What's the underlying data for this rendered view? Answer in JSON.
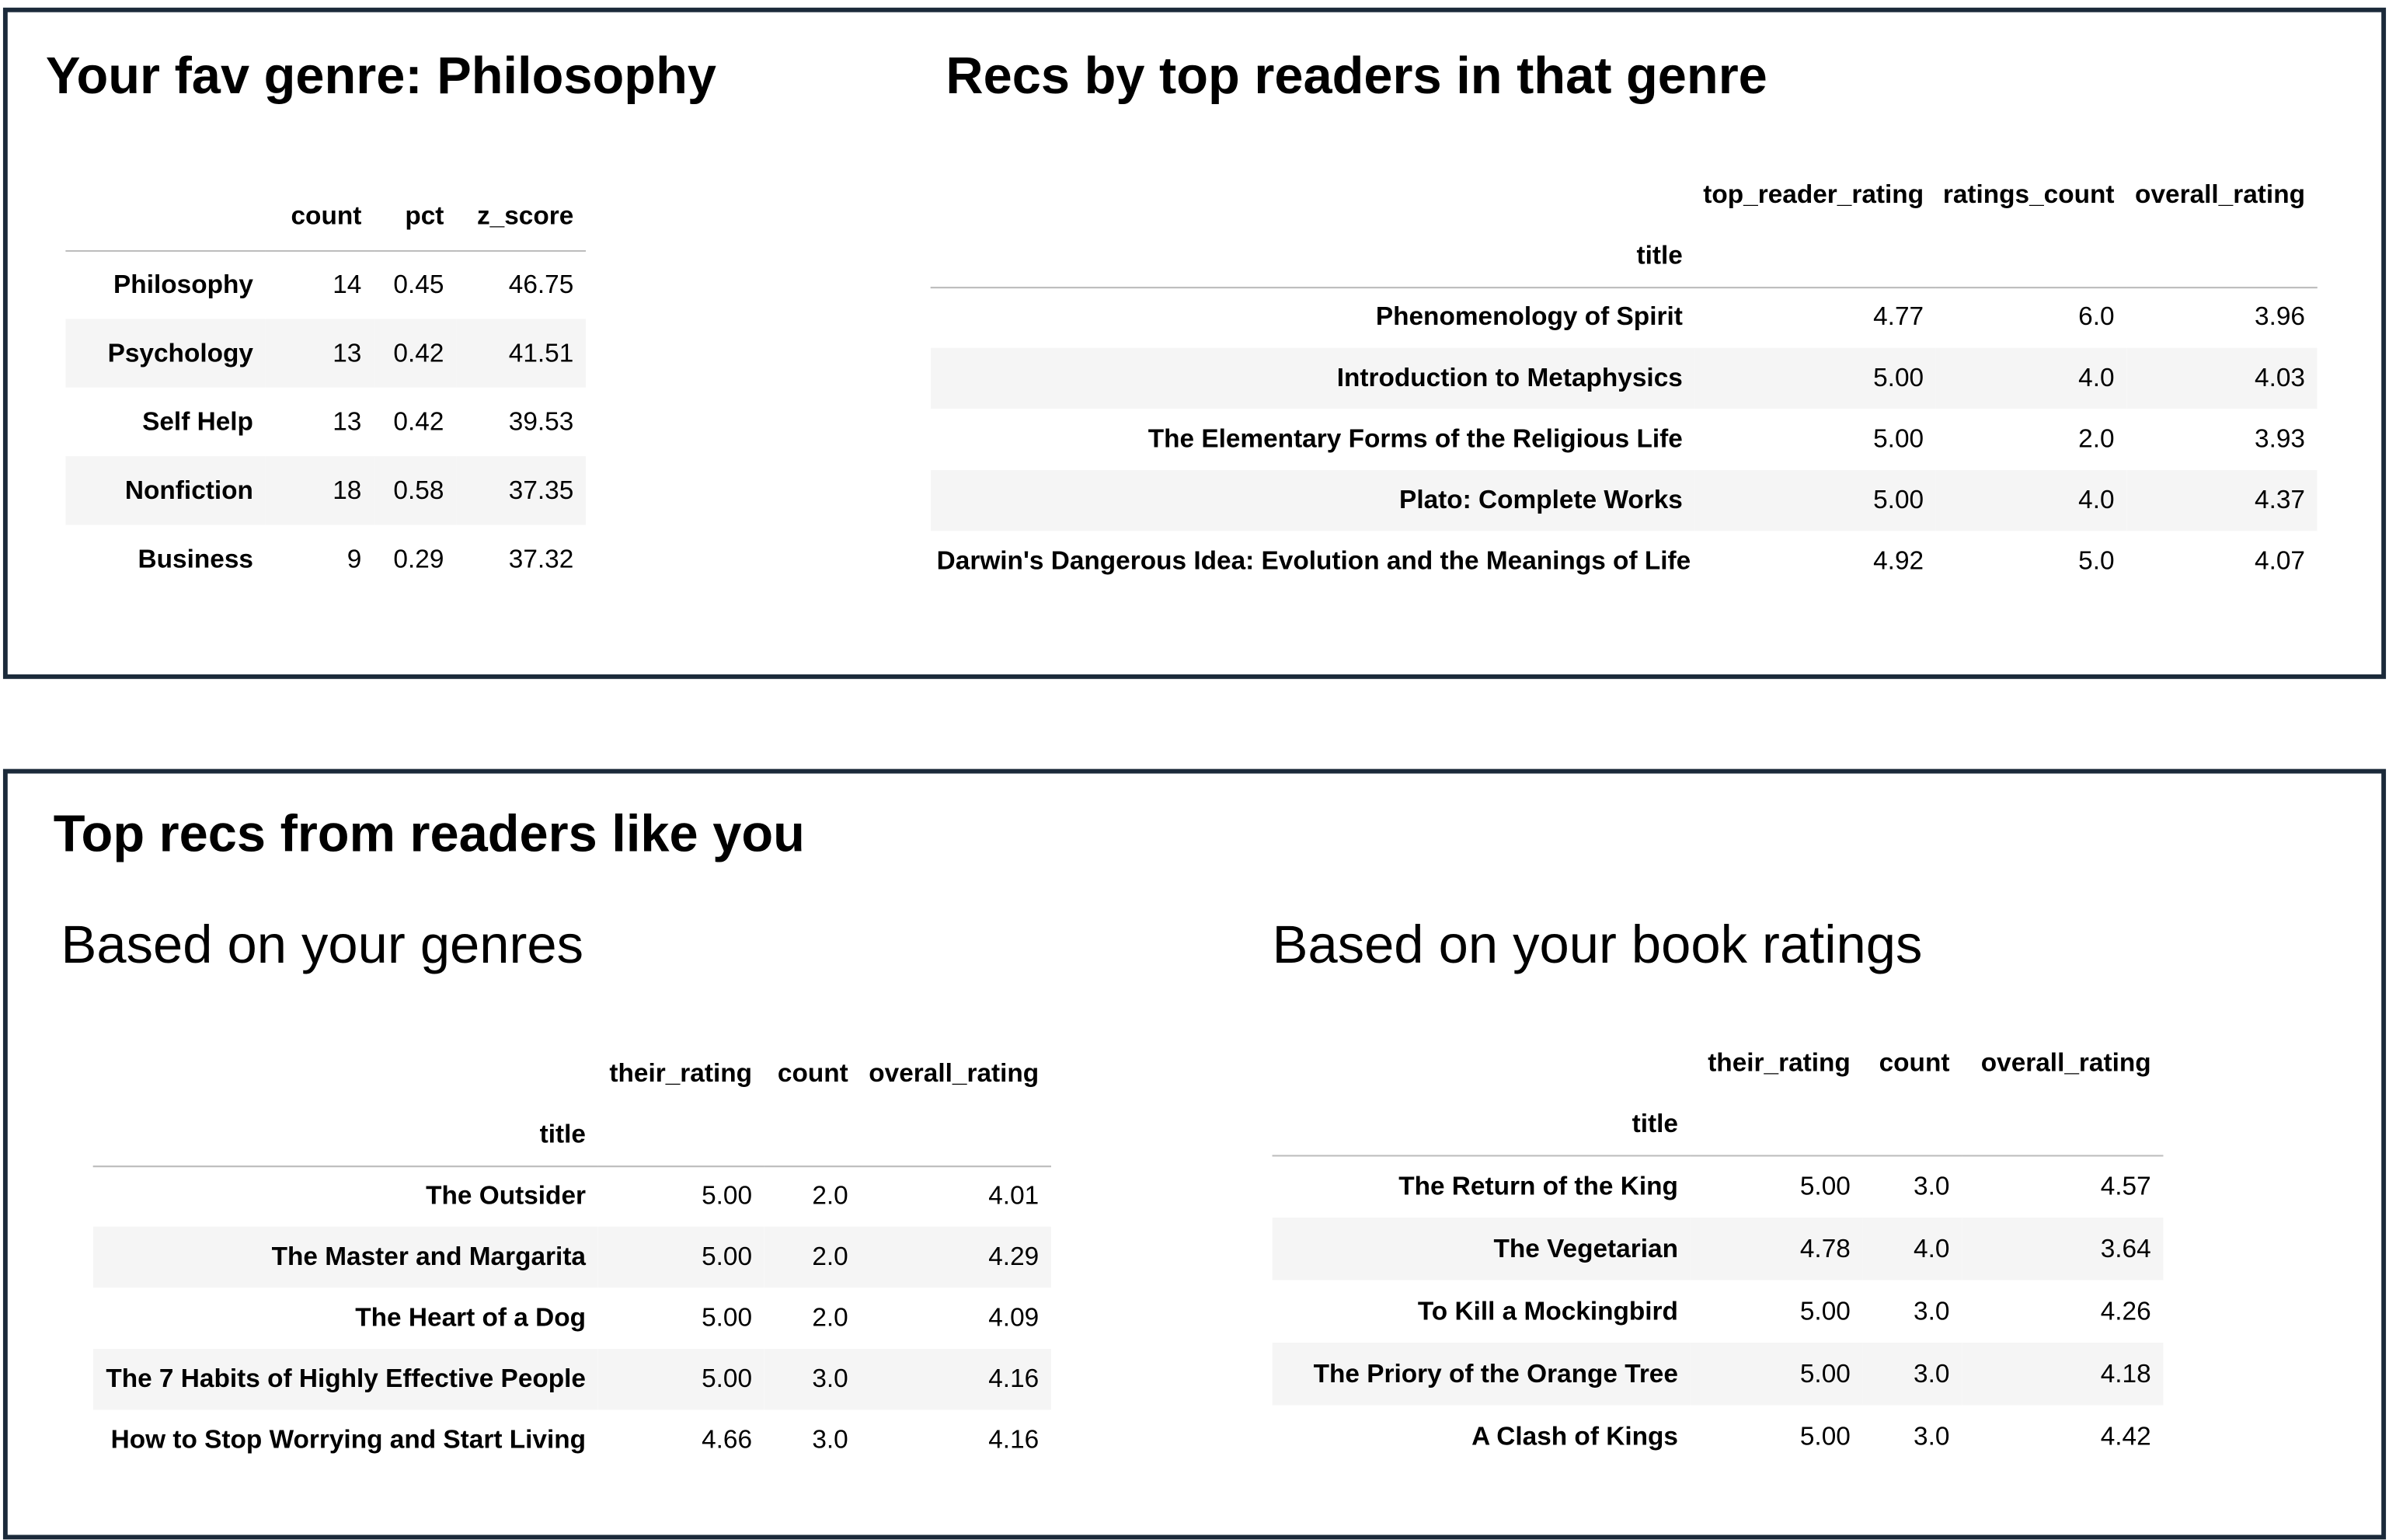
{
  "top_panel": {
    "genre_title": "Your fav genre: Philosophy",
    "genre_table": {
      "columns": [
        "count",
        "pct",
        "z_score"
      ],
      "rows": [
        {
          "index": "Philosophy",
          "cells": [
            "14",
            "0.45",
            "46.75"
          ]
        },
        {
          "index": "Psychology",
          "cells": [
            "13",
            "0.42",
            "41.51"
          ]
        },
        {
          "index": "Self Help",
          "cells": [
            "13",
            "0.42",
            "39.53"
          ]
        },
        {
          "index": "Nonfiction",
          "cells": [
            "18",
            "0.58",
            "37.35"
          ]
        },
        {
          "index": "Business",
          "cells": [
            "9",
            "0.29",
            "37.32"
          ]
        }
      ]
    },
    "recs_title": "Recs by top readers in that genre",
    "recs_table": {
      "index_name": "title",
      "columns": [
        "top_reader_rating",
        "ratings_count",
        "overall_rating"
      ],
      "rows": [
        {
          "index": "Phenomenology of Spirit",
          "cells": [
            "4.77",
            "6.0",
            "3.96"
          ]
        },
        {
          "index": "Introduction to Metaphysics",
          "cells": [
            "5.00",
            "4.0",
            "4.03"
          ]
        },
        {
          "index": "The Elementary Forms of the Religious Life",
          "cells": [
            "5.00",
            "2.0",
            "3.93"
          ]
        },
        {
          "index": "Plato: Complete Works",
          "cells": [
            "5.00",
            "4.0",
            "4.37"
          ]
        },
        {
          "index": "Darwin's Dangerous Idea: Evolution and the Meanings of Life",
          "cells": [
            "4.92",
            "5.0",
            "4.07"
          ]
        }
      ]
    }
  },
  "bottom_panel": {
    "title": "Top recs from readers like you",
    "genres_subtitle": "Based on your genres",
    "genres_table": {
      "index_name": "title",
      "columns": [
        "their_rating",
        "count",
        "overall_rating"
      ],
      "rows": [
        {
          "index": "The Outsider",
          "cells": [
            "5.00",
            "2.0",
            "4.01"
          ]
        },
        {
          "index": "The Master and Margarita",
          "cells": [
            "5.00",
            "2.0",
            "4.29"
          ]
        },
        {
          "index": "The Heart of a Dog",
          "cells": [
            "5.00",
            "2.0",
            "4.09"
          ]
        },
        {
          "index": "The 7 Habits of Highly Effective People",
          "cells": [
            "5.00",
            "3.0",
            "4.16"
          ]
        },
        {
          "index": "How to Stop Worrying and Start Living",
          "cells": [
            "4.66",
            "3.0",
            "4.16"
          ]
        }
      ]
    },
    "ratings_subtitle": "Based on your book ratings",
    "ratings_table": {
      "index_name": "title",
      "columns": [
        "their_rating",
        "count",
        "overall_rating"
      ],
      "rows": [
        {
          "index": "The Return of the King",
          "cells": [
            "5.00",
            "3.0",
            "4.57"
          ]
        },
        {
          "index": "The Vegetarian",
          "cells": [
            "4.78",
            "4.0",
            "3.64"
          ]
        },
        {
          "index": "To Kill a Mockingbird",
          "cells": [
            "5.00",
            "3.0",
            "4.26"
          ]
        },
        {
          "index": "The Priory of the Orange Tree",
          "cells": [
            "5.00",
            "3.0",
            "4.18"
          ]
        },
        {
          "index": "A Clash of Kings",
          "cells": [
            "5.00",
            "3.0",
            "4.42"
          ]
        }
      ]
    }
  }
}
